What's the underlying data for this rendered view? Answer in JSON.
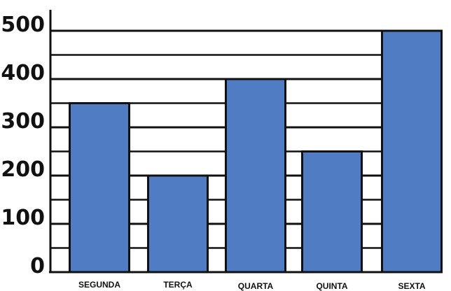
{
  "chart_data": {
    "type": "bar",
    "categories": [
      "SEGUNDA",
      "TERÇA",
      "QUARTA",
      "QUINTA",
      "SEXTA"
    ],
    "values": [
      350,
      200,
      400,
      250,
      500
    ],
    "yticks": [
      "0",
      "100",
      "200",
      "300",
      "400",
      "500"
    ],
    "ylim": [
      0,
      500
    ],
    "grid": true,
    "legend": "none",
    "bar_color": "#4f7cc2",
    "bar_edge_color": "#111111",
    "grid_color": "#111111"
  }
}
